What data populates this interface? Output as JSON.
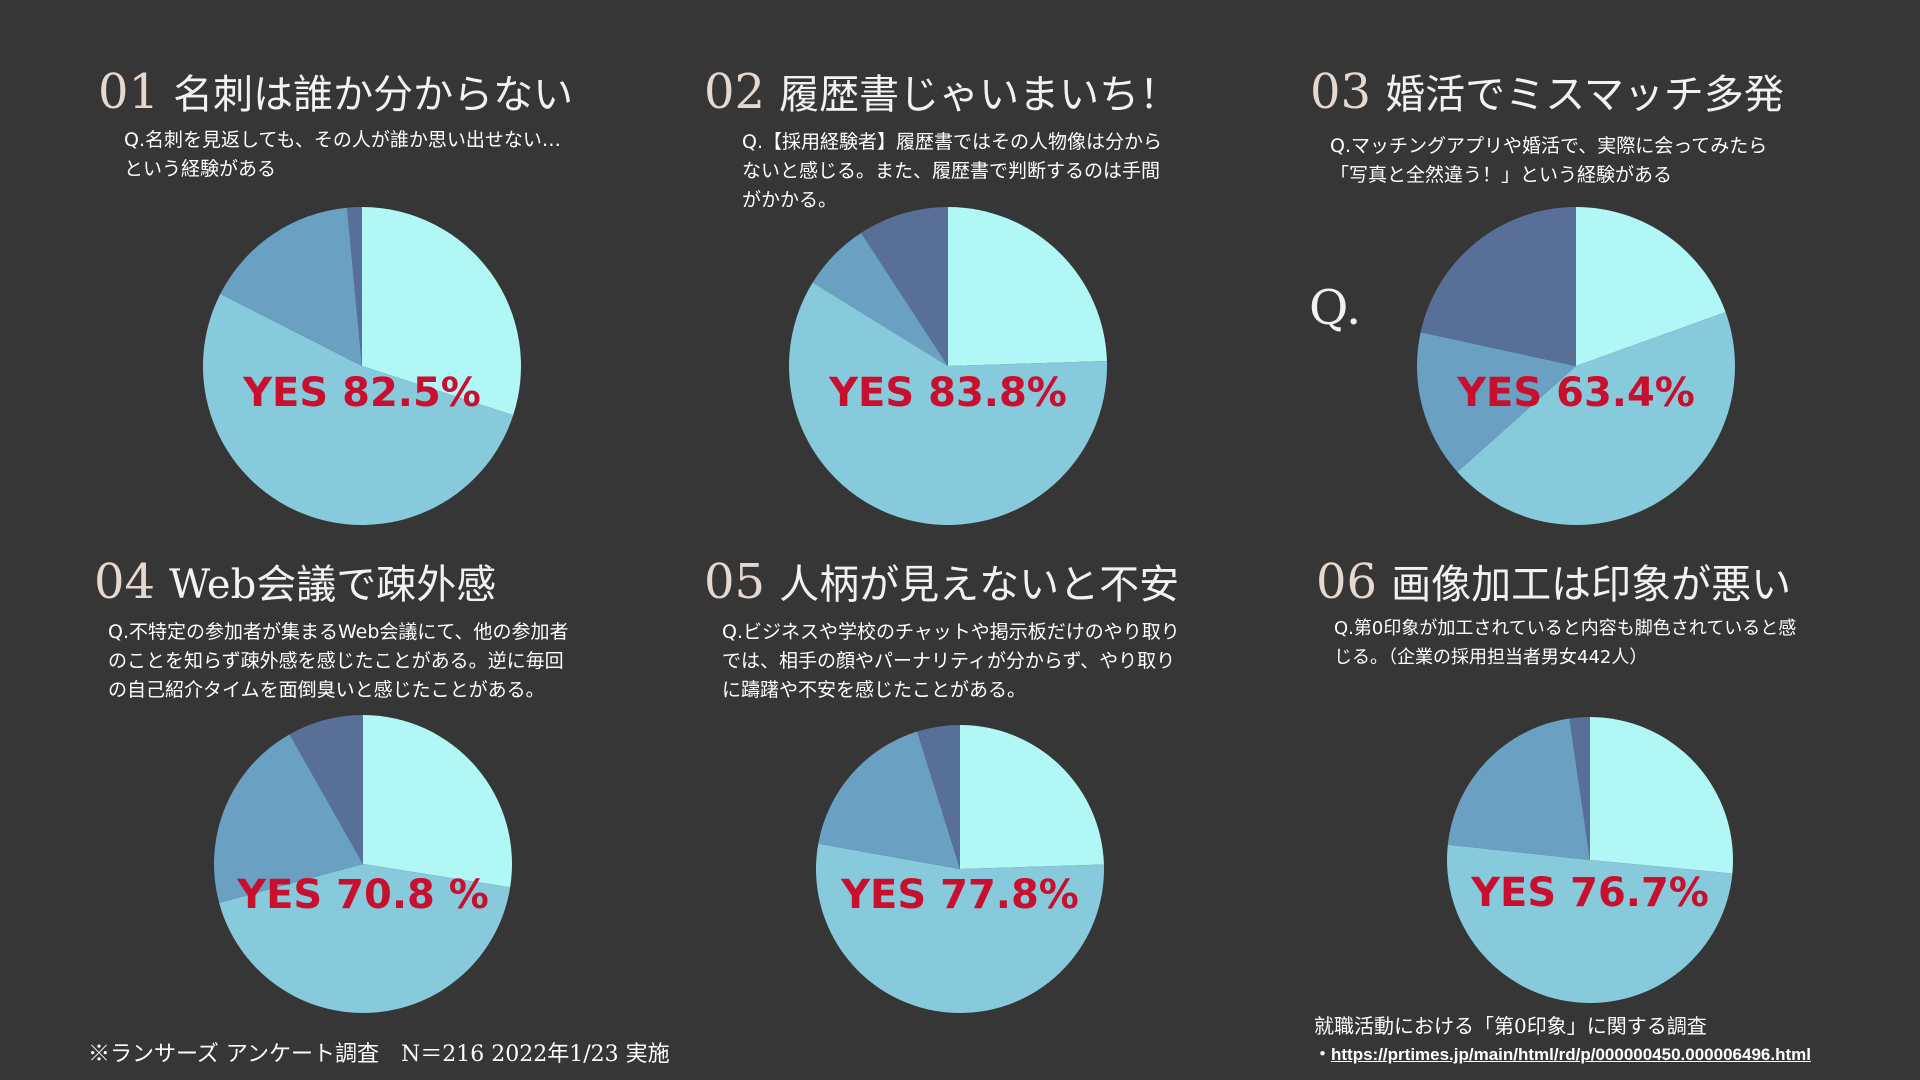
{
  "chart_data": [
    {
      "type": "pie",
      "number": "01",
      "title": "名刺は誰か分からない",
      "question_lines": [
        "Q.名刺を見返しても、その人が誰か思い出せない…",
        "という経験がある"
      ],
      "label": "YES  82.5%",
      "slices": [
        {
          "value": 30,
          "color": "#b0f7f5"
        },
        {
          "value": 52.5,
          "color": "#86cadc"
        },
        {
          "value": 16,
          "color": "#6aa0c1"
        },
        {
          "value": 1.5,
          "color": "#587098"
        }
      ]
    },
    {
      "type": "pie",
      "number": "02",
      "title": "履歴書じゃいまいち！",
      "question_lines": [
        "Q.【採用経験者】履歴書ではその人物像は分から",
        "ないと感じる。また、履歴書で判断するのは手間",
        "がかかる。"
      ],
      "label": "YES  83.8%",
      "slices": [
        {
          "value": 24.5,
          "color": "#b0f7f5"
        },
        {
          "value": 59.3,
          "color": "#86cadc"
        },
        {
          "value": 7,
          "color": "#6aa0c1"
        },
        {
          "value": 9.2,
          "color": "#587098"
        }
      ]
    },
    {
      "type": "pie",
      "number": "03",
      "title": "婚活でミスマッチ多発",
      "question_lines": [
        "Q.マッチングアプリや婚活で、実際に会ってみたら",
        "「写真と全然違う！」という経験がある"
      ],
      "label": "YES  63.4%",
      "slices": [
        {
          "value": 19.5,
          "color": "#b0f7f5"
        },
        {
          "value": 43.9,
          "color": "#86cadc"
        },
        {
          "value": 15,
          "color": "#6aa0c1"
        },
        {
          "value": 21.6,
          "color": "#587098"
        }
      ]
    },
    {
      "type": "pie",
      "number": "04",
      "title": "Web会議で疎外感",
      "question_lines": [
        "Q.不特定の参加者が集まるWeb会議にて、他の参加者",
        "のことを知らず疎外感を感じたことがある。逆に毎回",
        "の自己紹介タイムを面倒臭いと感じたことがある。"
      ],
      "label": "YES  70.8 %",
      "slices": [
        {
          "value": 27.5,
          "color": "#b0f7f5"
        },
        {
          "value": 43.3,
          "color": "#86cadc"
        },
        {
          "value": 21,
          "color": "#6aa0c1"
        },
        {
          "value": 8.2,
          "color": "#587098"
        }
      ]
    },
    {
      "type": "pie",
      "number": "05",
      "title": "人柄が見えないと不安",
      "question_lines": [
        "Q.ビジネスや学校のチャットや掲示板だけのやり取り",
        "では、相手の顔やパーナリティが分からず、やり取り",
        "に躊躇や不安を感じたことがある。"
      ],
      "label": "YES  77.8%",
      "slices": [
        {
          "value": 24.5,
          "color": "#b0f7f5"
        },
        {
          "value": 53.3,
          "color": "#86cadc"
        },
        {
          "value": 17.4,
          "color": "#6aa0c1"
        },
        {
          "value": 4.8,
          "color": "#587098"
        }
      ]
    },
    {
      "type": "pie",
      "number": "06",
      "title": "画像加工は印象が悪い",
      "question_lines": [
        "Q.第0印象が加工されていると内容も脚色されていると感",
        "じる。（企業の採用担当者男女442人）"
      ],
      "label": "YES  76.7%",
      "slices": [
        {
          "value": 26.5,
          "color": "#b0f7f5"
        },
        {
          "value": 50.2,
          "color": "#86cadc"
        },
        {
          "value": 21,
          "color": "#6aa0c1"
        },
        {
          "value": 2.3,
          "color": "#587098"
        }
      ]
    }
  ],
  "extra": {
    "q_mark": "Q."
  },
  "footer": {
    "survey_note": "※ランサーズ アンケート調査　N＝216  2022年1/23 実施",
    "source_title": "就職活動における「第0印象」に関する調査",
    "source_bullet": "・",
    "source_url": "https://prtimes.jp/main/html/rd/p/000000450.000006496.html"
  },
  "colors": {
    "background": "#363636",
    "label_red": "#c8102e"
  }
}
